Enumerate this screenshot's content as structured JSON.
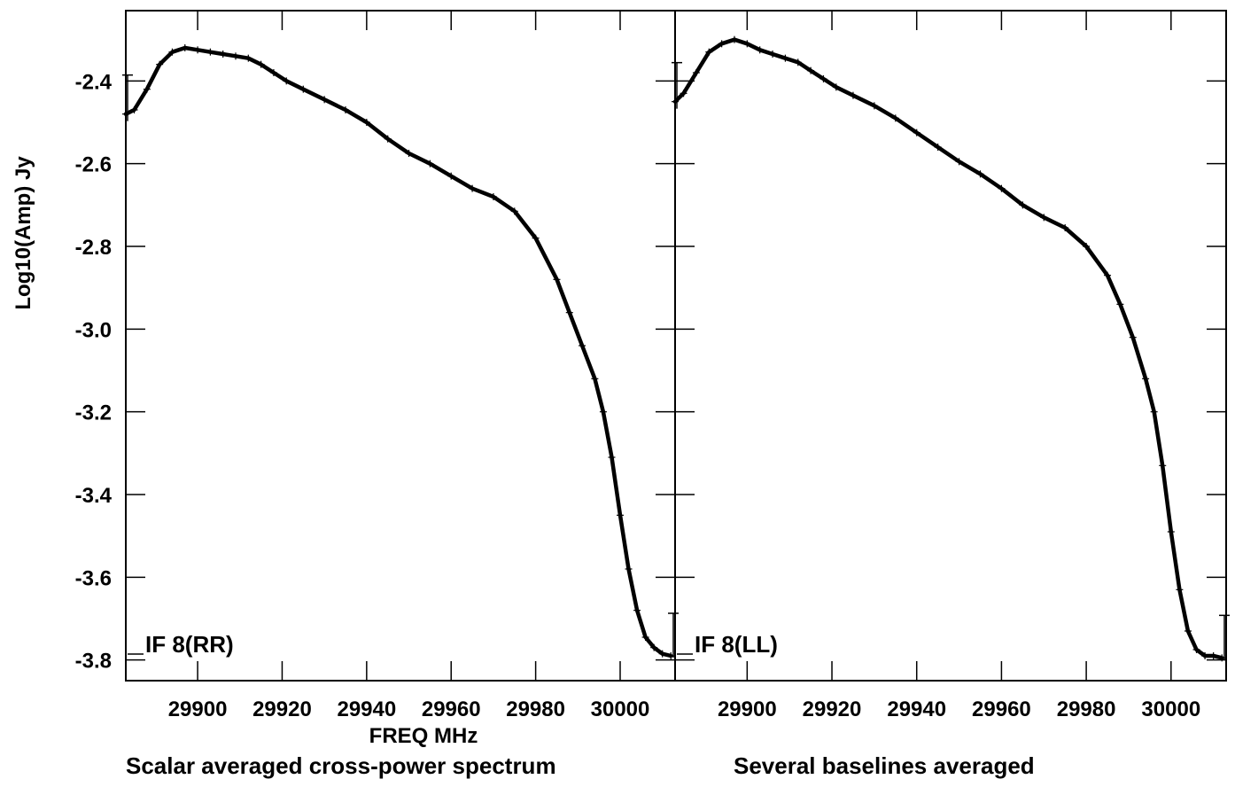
{
  "ylabel": "Log10(Amp) Jy",
  "xlabel": "FREQ MHz",
  "caption_left": "Scalar averaged cross-power spectrum",
  "caption_right": "Several baselines averaged",
  "chart_data": [
    {
      "type": "scatter",
      "panel_label": "IF 8(RR)",
      "xlabel": "FREQ MHz",
      "ylabel": "Log10(Amp) Jy",
      "xlim": [
        29883,
        30013
      ],
      "ylim": [
        -3.85,
        -2.23
      ],
      "x_ticks": [
        29900,
        29920,
        29940,
        29960,
        29980,
        30000
      ],
      "x_tick_labels": [
        "29900",
        "29920",
        "29940",
        "29960",
        "29980",
        "30000"
      ],
      "y_ticks": [
        -2.4,
        -2.6,
        -2.8,
        -3.0,
        -3.2,
        -3.4,
        -3.6,
        -3.8
      ],
      "y_tick_labels": [
        "-2.4",
        "-2.6",
        "-2.8",
        "-3.0",
        "-3.2",
        "-3.4",
        "-3.6",
        "-3.8"
      ],
      "series": [
        {
          "x": [
            29883.0,
            29885.0,
            29888.0,
            29891.0,
            29894.0,
            29897.0,
            29900.0,
            29903.0,
            29906.0,
            29909.0,
            29912.0,
            29915.0,
            29918.0,
            29921.0,
            29925.0,
            29930.0,
            29935.0,
            29940.0,
            29945.0,
            29950.0,
            29955.0,
            29960.0,
            29965.0,
            29970.0,
            29975.0,
            29980.0,
            29985.0,
            29988.0,
            29991.0,
            29994.0,
            29996.0,
            29998.0,
            30000.0,
            30002.0,
            30004.0,
            30006.0,
            30008.0,
            30010.0,
            30012.0
          ],
          "y": [
            -2.48,
            -2.47,
            -2.42,
            -2.36,
            -2.33,
            -2.32,
            -2.325,
            -2.33,
            -2.335,
            -2.34,
            -2.345,
            -2.36,
            -2.38,
            -2.4,
            -2.42,
            -2.445,
            -2.47,
            -2.5,
            -2.54,
            -2.575,
            -2.6,
            -2.63,
            -2.66,
            -2.68,
            -2.715,
            -2.78,
            -2.88,
            -2.96,
            -3.04,
            -3.12,
            -3.2,
            -3.31,
            -3.45,
            -3.58,
            -3.68,
            -3.745,
            -3.77,
            -3.785,
            -3.79
          ]
        }
      ]
    },
    {
      "type": "scatter",
      "panel_label": "IF 8(LL)",
      "xlabel": "FREQ MHz",
      "ylabel": "Log10(Amp) Jy",
      "xlim": [
        29883,
        30013
      ],
      "ylim": [
        -3.85,
        -2.23
      ],
      "x_ticks": [
        29900,
        29920,
        29940,
        29960,
        29980,
        30000
      ],
      "x_tick_labels": [
        "29900",
        "29920",
        "29940",
        "29960",
        "29980",
        "30000"
      ],
      "y_ticks": [
        -2.4,
        -2.6,
        -2.8,
        -3.0,
        -3.2,
        -3.4,
        -3.6,
        -3.8
      ],
      "y_tick_labels": [
        "-2.4",
        "-2.6",
        "-2.8",
        "-3.0",
        "-3.2",
        "-3.4",
        "-3.6",
        "-3.8"
      ],
      "series": [
        {
          "x": [
            29883.0,
            29885.0,
            29888.0,
            29891.0,
            29894.0,
            29897.0,
            29900.0,
            29903.0,
            29906.0,
            29909.0,
            29912.0,
            29915.0,
            29918.0,
            29921.0,
            29925.0,
            29930.0,
            29935.0,
            29940.0,
            29945.0,
            29950.0,
            29955.0,
            29960.0,
            29965.0,
            29970.0,
            29975.0,
            29980.0,
            29985.0,
            29988.0,
            29991.0,
            29994.0,
            29996.0,
            29998.0,
            30000.0,
            30002.0,
            30004.0,
            30006.0,
            30008.0,
            30010.0,
            30012.0
          ],
          "y": [
            -2.45,
            -2.43,
            -2.38,
            -2.33,
            -2.31,
            -2.3,
            -2.31,
            -2.325,
            -2.335,
            -2.345,
            -2.355,
            -2.375,
            -2.395,
            -2.415,
            -2.435,
            -2.46,
            -2.49,
            -2.525,
            -2.56,
            -2.595,
            -2.625,
            -2.66,
            -2.7,
            -2.73,
            -2.755,
            -2.8,
            -2.87,
            -2.94,
            -3.02,
            -3.12,
            -3.2,
            -3.33,
            -3.49,
            -3.63,
            -3.73,
            -3.775,
            -3.79,
            -3.79,
            -3.795
          ]
        }
      ]
    }
  ]
}
